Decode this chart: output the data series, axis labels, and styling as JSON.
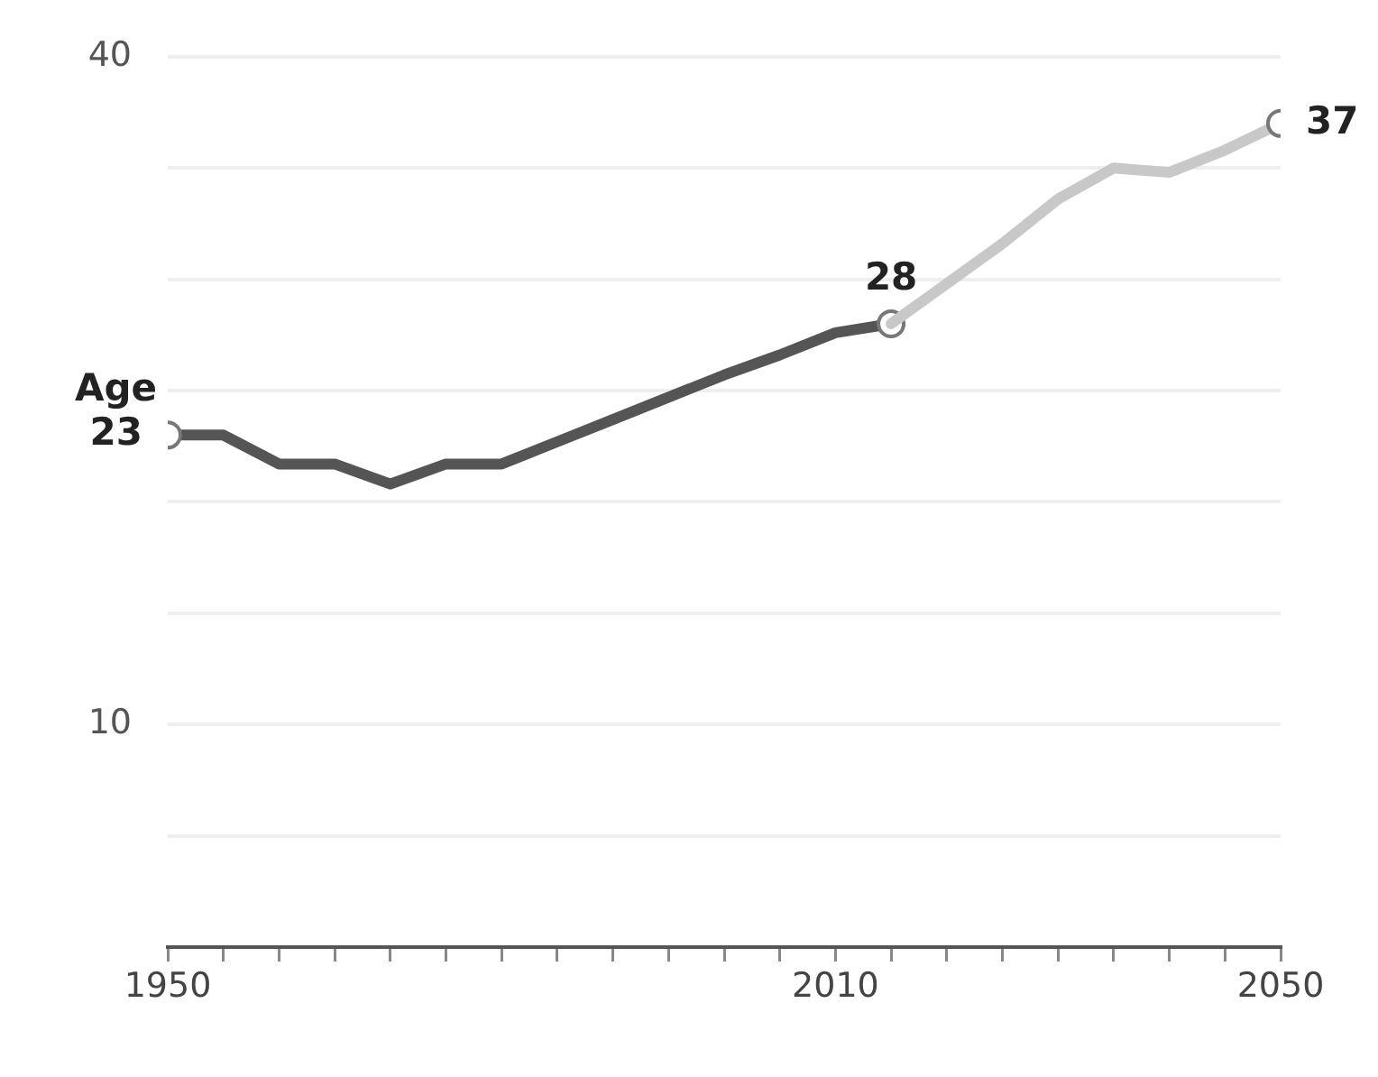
{
  "chart_data": {
    "type": "line",
    "x": [
      1950,
      1955,
      1960,
      1965,
      1970,
      1975,
      1980,
      1985,
      1990,
      1995,
      2000,
      2005,
      2010,
      2015
    ],
    "series": [
      {
        "color": "#555555",
        "values": [
          23,
          23,
          21.7,
          21.7,
          20.8,
          21.7,
          21.7,
          22.7,
          23.7,
          24.7,
          25.7,
          26.6,
          27.6,
          28
        ],
        "value_labels": [
          "23",
          null,
          null,
          null,
          null,
          null,
          null,
          null,
          null,
          null,
          null,
          null,
          null,
          "28"
        ]
      },
      {
        "color": "#c8c8c8",
        "x": [
          2015,
          2025,
          2030,
          2035,
          2040,
          2045,
          2050
        ],
        "values": [
          28,
          31.6,
          33.6,
          35,
          34.8,
          35.8,
          37
        ],
        "value_labels": [
          null,
          null,
          null,
          null,
          null,
          null,
          "37"
        ]
      }
    ],
    "annotations": [
      {
        "text": "Age",
        "x": 1950,
        "y": 23
      }
    ],
    "xlim": [
      1950,
      2050
    ],
    "xticks": [
      1950,
      {
        "value": 1955,
        "label": null
      },
      {
        "value": 1960,
        "label": null
      },
      {
        "value": 1965,
        "label": null
      },
      {
        "value": 1970,
        "label": null
      },
      {
        "value": 1975,
        "label": null
      },
      {
        "value": 1980,
        "label": null
      },
      {
        "value": 1985,
        "label": null
      },
      {
        "value": 1990,
        "label": null
      },
      {
        "value": 1995,
        "label": null
      },
      {
        "value": 2000,
        "label": null
      },
      {
        "value": 2005,
        "label": null
      },
      2010,
      {
        "value": 2015,
        "label": null
      },
      {
        "value": 2020,
        "label": null
      },
      {
        "value": 2025,
        "label": null
      },
      {
        "value": 2030,
        "label": null
      },
      {
        "value": 2035,
        "label": null
      },
      {
        "value": 2040,
        "label": null
      },
      {
        "value": 2045,
        "label": null
      },
      2050
    ],
    "ylim": [
      0,
      40
    ],
    "yticks": [
      {
        "value": 5,
        "label": null
      },
      10,
      {
        "value": 15,
        "label": null
      },
      {
        "value": 20,
        "label": null
      },
      {
        "value": 25,
        "label": null
      },
      {
        "value": 30,
        "label": null
      },
      {
        "value": 35,
        "label": null
      },
      40
    ],
    "grid": "y",
    "legend": false
  }
}
